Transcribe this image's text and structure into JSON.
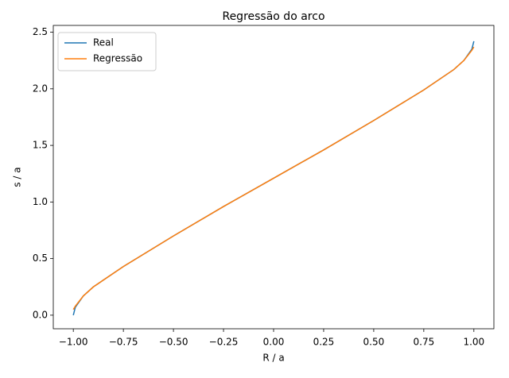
{
  "chart_data": {
    "type": "line",
    "title": "Regressão do arco",
    "x_label": "R / a",
    "y_label": "s / a",
    "x": [
      -1.0,
      -0.99,
      -0.95,
      -0.9,
      -0.75,
      -0.5,
      -0.25,
      0.0,
      0.25,
      0.5,
      0.75,
      0.9,
      0.95,
      0.99,
      1.0
    ],
    "series": [
      {
        "name": "Real",
        "color": "#1f77b4",
        "values": [
          0.0,
          0.07,
          0.17,
          0.25,
          0.43,
          0.7,
          0.96,
          1.21,
          1.46,
          1.72,
          1.99,
          2.17,
          2.25,
          2.35,
          2.42
        ]
      },
      {
        "name": "Regressão",
        "color": "#ff7f0e",
        "values": [
          0.05,
          0.08,
          0.17,
          0.25,
          0.43,
          0.7,
          0.96,
          1.21,
          1.46,
          1.72,
          1.99,
          2.17,
          2.25,
          2.34,
          2.37
        ]
      }
    ],
    "xlim": [
      -1.1,
      1.1
    ],
    "ylim": [
      -0.12,
      2.56
    ],
    "xticks": [
      {
        "value": -1.0,
        "label": "−1.00"
      },
      {
        "value": -0.75,
        "label": "−0.75"
      },
      {
        "value": -0.5,
        "label": "−0.50"
      },
      {
        "value": -0.25,
        "label": "−0.25"
      },
      {
        "value": 0,
        "label": "0.00"
      },
      {
        "value": 0.25,
        "label": "0.25"
      },
      {
        "value": 0.5,
        "label": "0.50"
      },
      {
        "value": 0.75,
        "label": "0.75"
      },
      {
        "value": 1.0,
        "label": "1.00"
      }
    ],
    "yticks": [
      {
        "value": 0,
        "label": "0.0"
      },
      0.5,
      {
        "value": 1,
        "label": "1.0"
      },
      1.5,
      {
        "value": 2,
        "label": "2.0"
      },
      2.5
    ],
    "legend": "upper left",
    "grid": false
  }
}
